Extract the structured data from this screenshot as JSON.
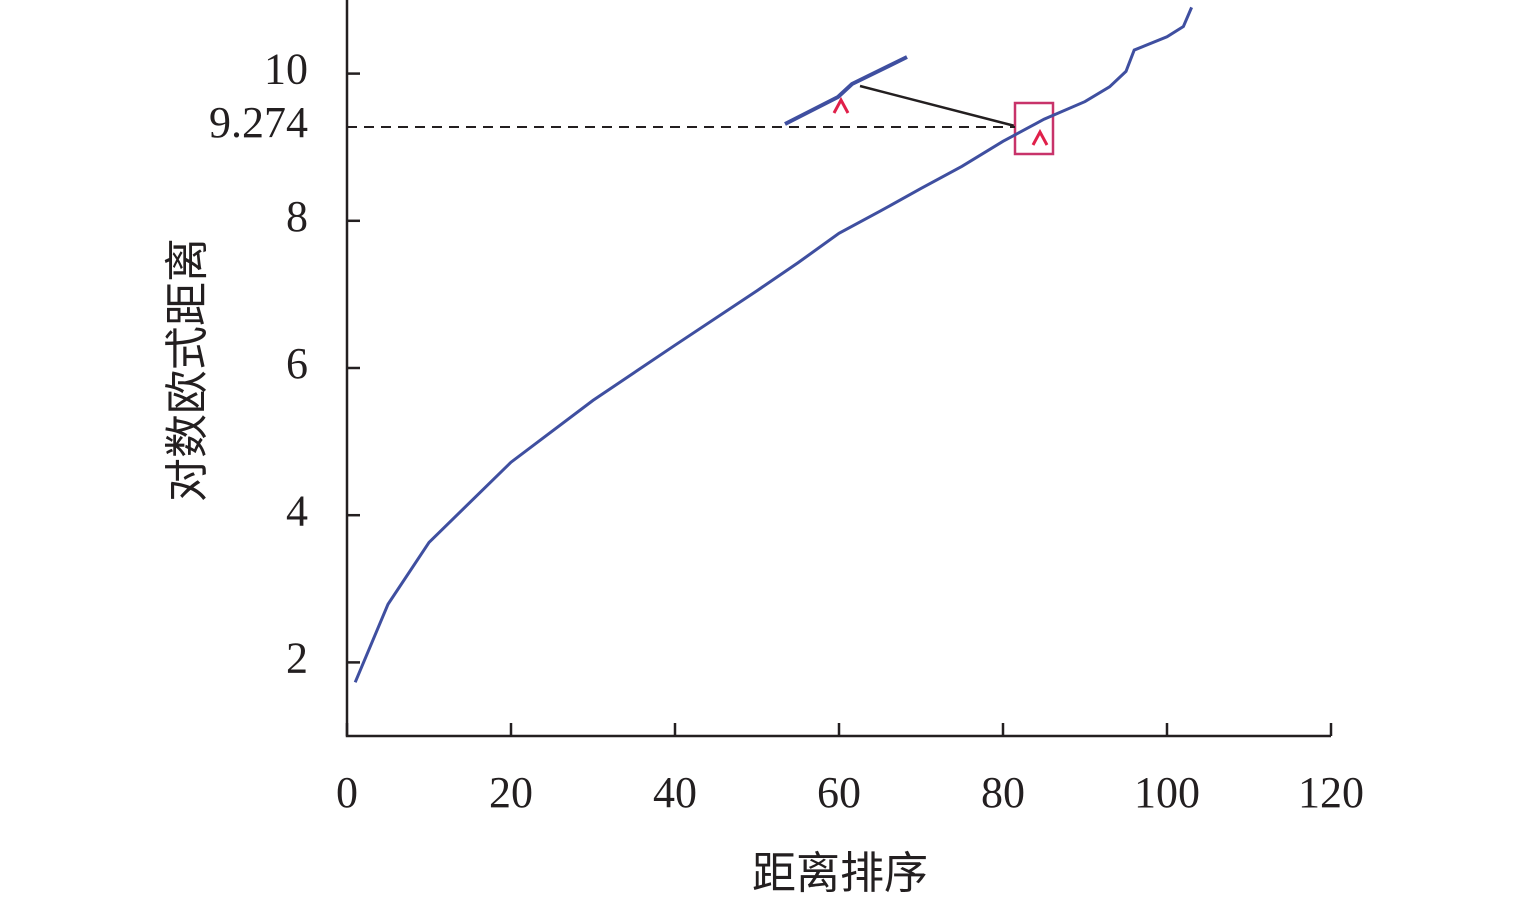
{
  "chart_data": {
    "type": "line",
    "x_label": "距离排序",
    "y_label": "对数欧式距离",
    "x": [
      1,
      5,
      10,
      20,
      30,
      40,
      50,
      55,
      60,
      65,
      70,
      75,
      80,
      84,
      85,
      90,
      93,
      95,
      96,
      100,
      102,
      103
    ],
    "series": [
      {
        "color": "#3f4fa0",
        "values": [
          1.73,
          2.79,
          3.63,
          4.72,
          5.56,
          6.31,
          7.05,
          7.43,
          7.83,
          8.13,
          8.44,
          8.74,
          9.08,
          9.32,
          9.38,
          9.62,
          9.82,
          10.03,
          10.32,
          10.5,
          10.64,
          10.9
        ]
      }
    ],
    "xlim": [
      0,
      120
    ],
    "xticks": [
      0,
      20,
      40,
      60,
      80,
      100,
      120
    ],
    "ylim": [
      1,
      11
    ],
    "yticks": [
      2,
      4,
      6,
      8,
      9.274,
      10
    ]
  }
}
